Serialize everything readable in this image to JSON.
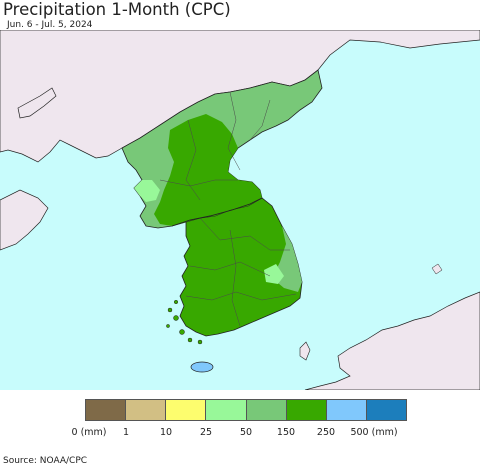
{
  "title": "Precipitation 1-Month (CPC)",
  "date_range": "Jun. 6 - Jul. 5, 2024",
  "source": "Source: NOAA/CPC",
  "colors": {
    "ocean": "#c8fcfc",
    "land_other": "#efe6ee",
    "class_25_50": "#98f899",
    "class_50_150": "#78c878",
    "class_150_250": "#38a800"
  },
  "legend": {
    "swatches": [
      {
        "name": "0-1",
        "color": "#7f6a48"
      },
      {
        "name": "1-10",
        "color": "#d2bf84"
      },
      {
        "name": "10-25",
        "color": "#fdfd6e"
      },
      {
        "name": "25-50",
        "color": "#98f899"
      },
      {
        "name": "50-150",
        "color": "#78c878"
      },
      {
        "name": "150-250",
        "color": "#38a800"
      },
      {
        "name": "250-500",
        "color": "#80c8fc"
      },
      {
        "name": "500+",
        "color": "#1c7ebc"
      }
    ],
    "ticks": [
      "0 (mm)",
      "1",
      "10",
      "25",
      "50",
      "150",
      "250",
      "500 (mm)"
    ]
  },
  "regions": [
    {
      "name": "Korean Peninsula",
      "dominant_class": "150-250"
    },
    {
      "name": "North Korea north and west coast",
      "dominant_class": "50-150"
    },
    {
      "name": "Northwest Korea coastal patch",
      "dominant_class": "25-50"
    },
    {
      "name": "Southeast Korea east coast",
      "dominant_class": "50-150"
    }
  ]
}
